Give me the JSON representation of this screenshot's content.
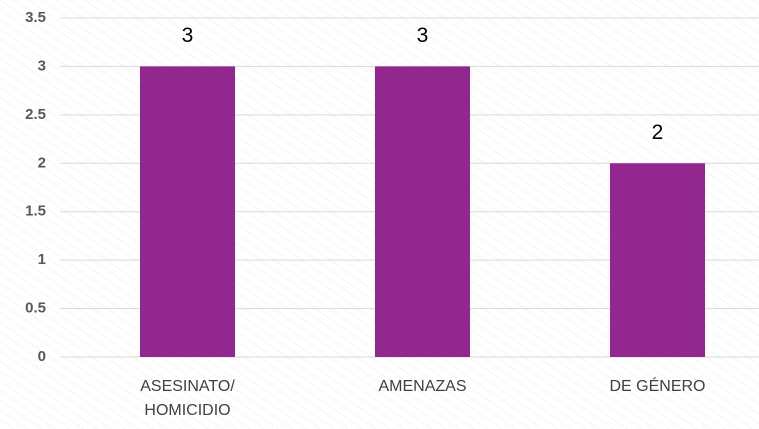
{
  "chart_data": {
    "type": "bar",
    "categories": [
      "ASESINATO/ HOMICIDIO",
      "AMENAZAS",
      "DE GÉNERO"
    ],
    "values": [
      3,
      3,
      2
    ],
    "color": "#92278f",
    "ylim": [
      0,
      3.5
    ],
    "yticks": [
      0,
      0.5,
      1,
      1.5,
      2,
      2.5,
      3,
      3.5
    ],
    "grid": true
  }
}
